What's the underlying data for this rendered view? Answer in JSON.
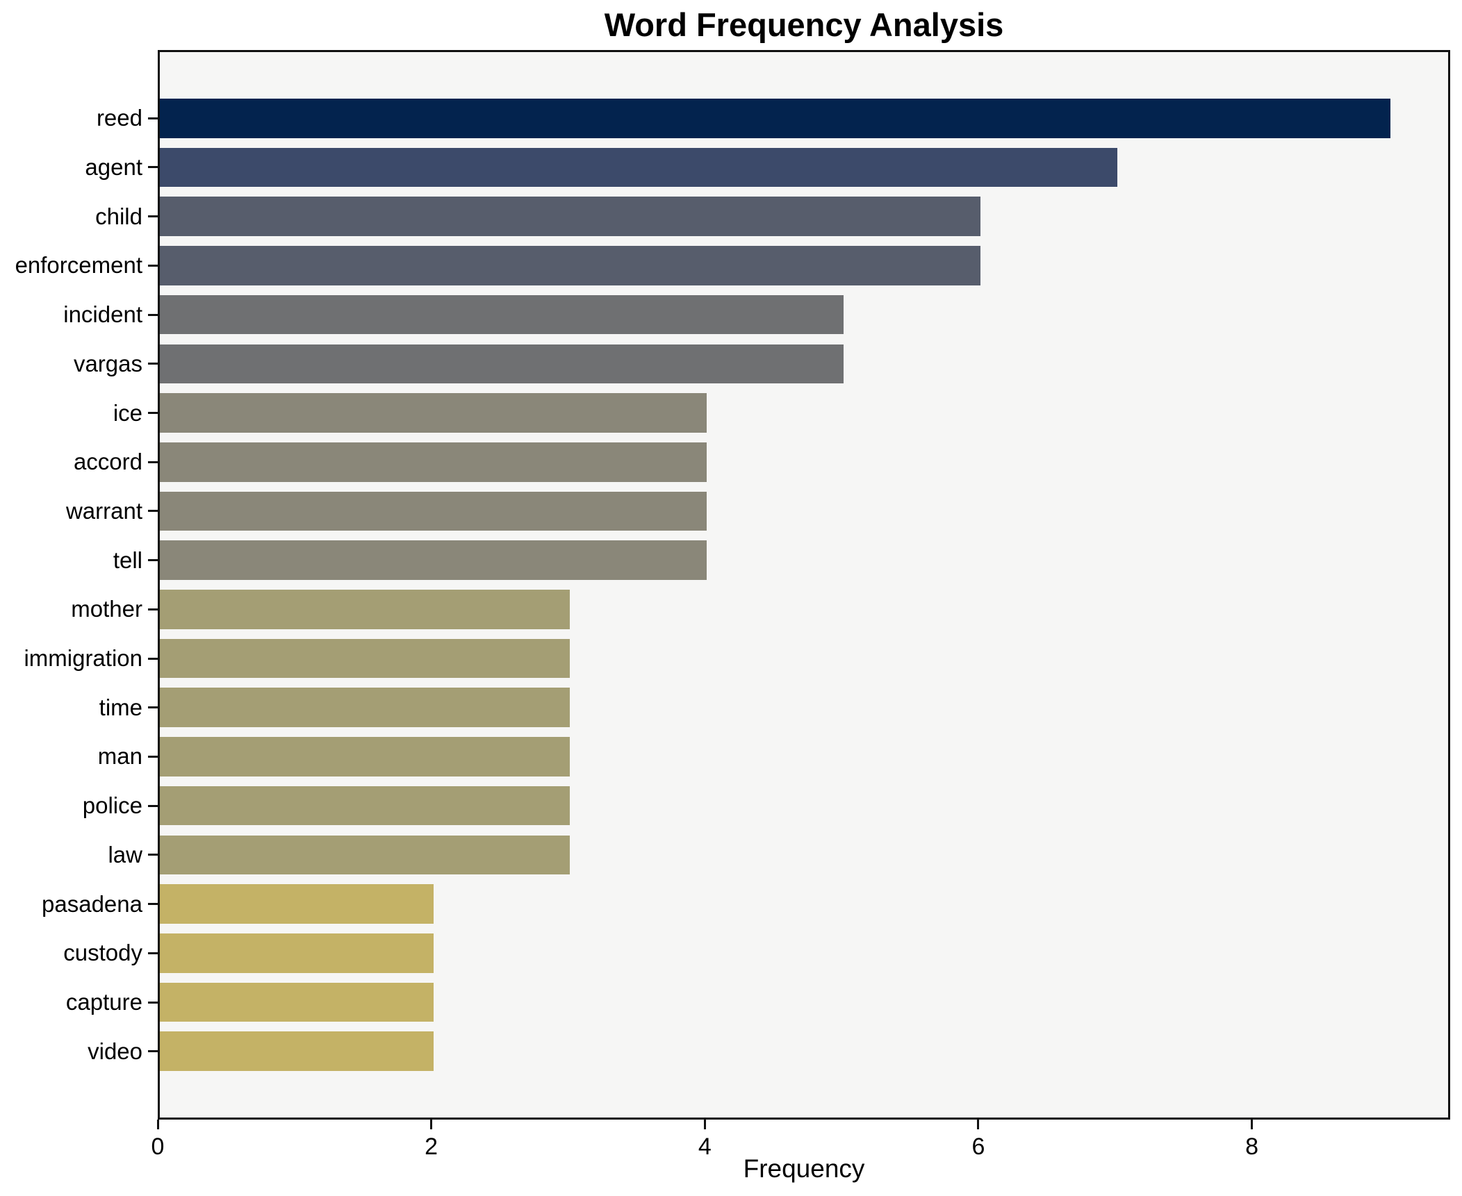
{
  "title": "Word Frequency Analysis",
  "chart_data": {
    "type": "bar",
    "orientation": "horizontal",
    "title": "Word Frequency Analysis",
    "xlabel": "Frequency",
    "ylabel": "",
    "categories": [
      "reed",
      "agent",
      "child",
      "enforcement",
      "incident",
      "vargas",
      "ice",
      "accord",
      "warrant",
      "tell",
      "mother",
      "immigration",
      "time",
      "man",
      "police",
      "law",
      "pasadena",
      "custody",
      "capture",
      "video"
    ],
    "values": [
      9,
      7,
      6,
      6,
      5,
      5,
      4,
      4,
      4,
      4,
      3,
      3,
      3,
      3,
      3,
      3,
      2,
      2,
      2,
      2
    ],
    "bar_colors": [
      "#03234e",
      "#3c4a6a",
      "#575d6c",
      "#575d6c",
      "#6f7072",
      "#6f7072",
      "#8a8779",
      "#8a8779",
      "#8a8779",
      "#8a8779",
      "#a49e74",
      "#a49e74",
      "#a49e74",
      "#a49e74",
      "#a49e74",
      "#a49e74",
      "#c4b266",
      "#c4b266",
      "#c4b266",
      "#c4b266"
    ],
    "xticks": [
      0,
      2,
      4,
      6,
      8
    ],
    "xlim": [
      0,
      9.45
    ],
    "grid": false,
    "legend": false,
    "plot_background": "#f6f6f5",
    "figure_background": "#ffffff",
    "axis_color": "#111111"
  }
}
